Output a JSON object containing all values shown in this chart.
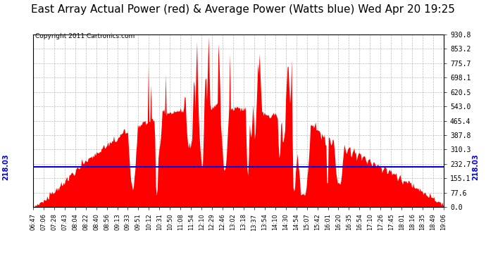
{
  "title": "East Array Actual Power (red) & Average Power (Watts blue) Wed Apr 20 19:25",
  "copyright": "Copyright 2011 Cartronics.com",
  "avg_line_value": 218.03,
  "ymin": 0.0,
  "ymax": 930.8,
  "yticks": [
    0.0,
    77.6,
    155.1,
    232.7,
    310.3,
    387.8,
    465.4,
    543.0,
    620.5,
    698.1,
    775.7,
    853.2,
    930.8
  ],
  "bg_color": "#ffffff",
  "bar_color": "#ff0000",
  "line_color": "#0000dd",
  "grid_color": "#aaaaaa",
  "title_fontsize": 11,
  "copyright_fontsize": 6.5,
  "x_labels": [
    "06:47",
    "07:06",
    "07:28",
    "07:43",
    "08:04",
    "08:22",
    "08:40",
    "08:56",
    "09:13",
    "09:33",
    "09:51",
    "10:12",
    "10:31",
    "10:50",
    "11:08",
    "11:54",
    "12:10",
    "12:29",
    "12:46",
    "13:02",
    "13:18",
    "13:37",
    "13:54",
    "14:10",
    "14:30",
    "14:54",
    "15:07",
    "15:42",
    "16:01",
    "16:20",
    "16:35",
    "16:54",
    "17:10",
    "17:26",
    "17:45",
    "18:01",
    "18:16",
    "18:35",
    "18:49",
    "19:06"
  ],
  "n_points": 500,
  "seed": 7
}
